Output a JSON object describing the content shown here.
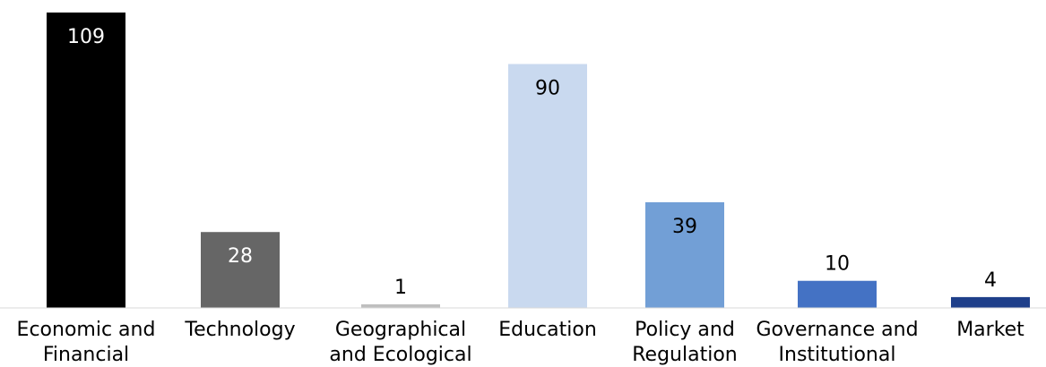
{
  "chart_data": {
    "type": "bar",
    "categories": [
      [
        "Economic and",
        "Financial"
      ],
      [
        "Technology"
      ],
      [
        "Geographical",
        "and Ecological"
      ],
      [
        "Education"
      ],
      [
        "Policy and",
        "Regulation"
      ],
      [
        "Governance and",
        "Institutional"
      ],
      [
        "Market"
      ]
    ],
    "values": [
      109,
      28,
      1,
      90,
      39,
      10,
      4
    ],
    "bar_colors": [
      "#000000",
      "#666666",
      "#bfbfbf",
      "#c9d9ef",
      "#729fd6",
      "#4472c4",
      "#1f3f8a"
    ],
    "label_colors": [
      "#ffffff",
      "#ffffff",
      "#000000",
      "#000000",
      "#000000",
      "#000000",
      "#000000"
    ],
    "label_inside": [
      true,
      true,
      false,
      true,
      true,
      false,
      false
    ],
    "ylim": [
      0,
      109
    ],
    "grid": false,
    "legend": "none",
    "title": "",
    "xlabel": "",
    "ylabel": ""
  }
}
